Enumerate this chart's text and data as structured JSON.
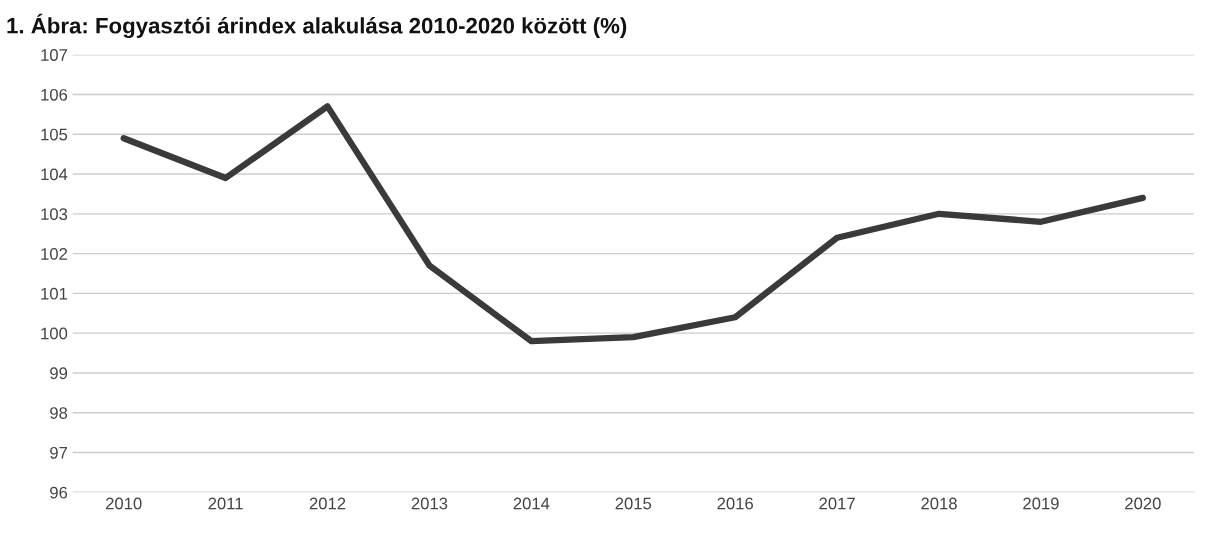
{
  "chart_data": {
    "type": "line",
    "title": "1. Ábra: Fogyasztói árindex alakulása 2010-2020 között (%)",
    "categories": [
      "2010",
      "2011",
      "2012",
      "2013",
      "2014",
      "2015",
      "2016",
      "2017",
      "2018",
      "2019",
      "2020"
    ],
    "series": [
      {
        "color": "#3a3a3a",
        "values": [
          104.9,
          103.9,
          105.7,
          101.7,
          99.8,
          99.9,
          100.4,
          102.4,
          103.0,
          102.8,
          103.4
        ]
      }
    ],
    "ylim": [
      96,
      107
    ],
    "yticks": [
      96,
      97,
      98,
      99,
      100,
      101,
      102,
      103,
      104,
      105,
      106,
      107
    ],
    "grid": "y",
    "marker": "none",
    "line_style": "solid"
  }
}
